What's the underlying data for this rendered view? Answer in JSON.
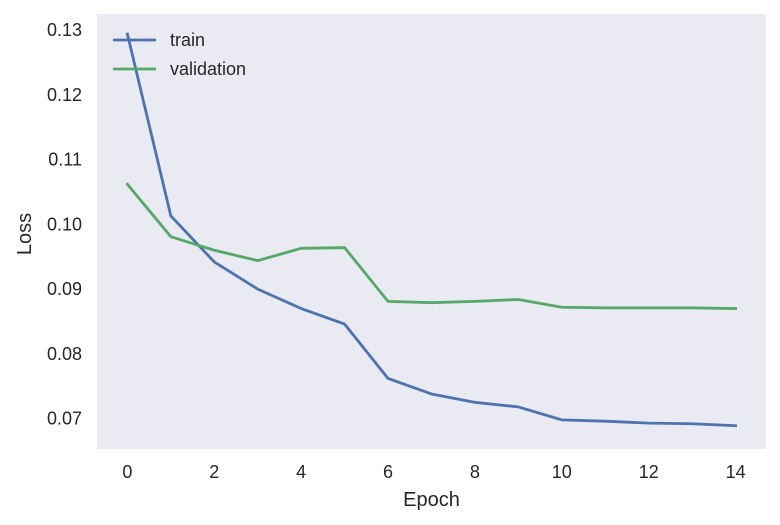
{
  "chart_data": {
    "type": "line",
    "title": "",
    "xlabel": "Epoch",
    "ylabel": "Loss",
    "x": [
      0,
      1,
      2,
      3,
      4,
      5,
      6,
      7,
      8,
      9,
      10,
      11,
      12,
      13,
      14
    ],
    "series": [
      {
        "name": "train",
        "color": "#4c72b0",
        "values": [
          0.1294,
          0.1013,
          0.0942,
          0.09,
          0.087,
          0.0846,
          0.0762,
          0.0738,
          0.0725,
          0.0718,
          0.0698,
          0.0696,
          0.0693,
          0.0692,
          0.0689
        ]
      },
      {
        "name": "validation",
        "color": "#55a868",
        "values": [
          0.1062,
          0.0981,
          0.096,
          0.0944,
          0.0963,
          0.0964,
          0.0881,
          0.0879,
          0.0881,
          0.0884,
          0.0872,
          0.0871,
          0.0871,
          0.0871,
          0.087
        ]
      }
    ],
    "xlim": [
      -0.7,
      14.7
    ],
    "ylim": [
      0.0653,
      0.1325
    ],
    "xticks": [
      0,
      2,
      4,
      6,
      8,
      10,
      12,
      14
    ],
    "yticks": [
      0.07,
      0.08,
      0.09,
      0.1,
      0.11,
      0.12,
      0.13
    ],
    "ytick_labels": [
      "0.07",
      "0.08",
      "0.09",
      "0.10",
      "0.11",
      "0.12",
      "0.13"
    ],
    "grid": false,
    "legend_position": "top-left",
    "background": "#eaeaf2"
  }
}
